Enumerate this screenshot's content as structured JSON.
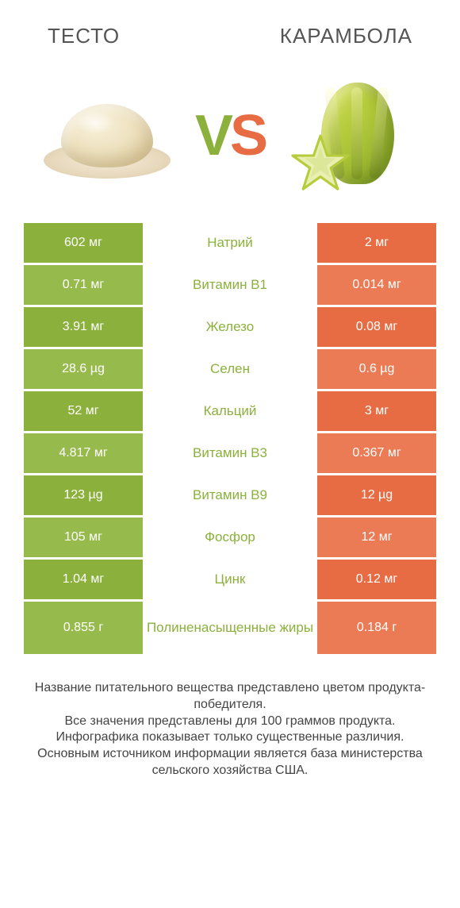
{
  "header": {
    "left_title": "ТЕСТО",
    "right_title": "КАРАМБОЛА"
  },
  "vs": {
    "v": "V",
    "s": "S"
  },
  "colors": {
    "left": "#8bb13c",
    "right": "#e86c43",
    "row_alt_tint": 0.12,
    "text_dark": "#444444",
    "background": "#ffffff"
  },
  "table": {
    "type": "comparison-table",
    "columns": [
      "left_value",
      "nutrient",
      "right_value"
    ],
    "rows": [
      {
        "left": "602 мг",
        "mid": "Натрий",
        "right": "2 мг",
        "winner": "left"
      },
      {
        "left": "0.71 мг",
        "mid": "Витамин B1",
        "right": "0.014 мг",
        "winner": "left"
      },
      {
        "left": "3.91 мг",
        "mid": "Железо",
        "right": "0.08 мг",
        "winner": "left"
      },
      {
        "left": "28.6 µg",
        "mid": "Селен",
        "right": "0.6 µg",
        "winner": "left"
      },
      {
        "left": "52 мг",
        "mid": "Кальций",
        "right": "3 мг",
        "winner": "left"
      },
      {
        "left": "4.817 мг",
        "mid": "Витамин B3",
        "right": "0.367 мг",
        "winner": "left"
      },
      {
        "left": "123 µg",
        "mid": "Витамин B9",
        "right": "12 µg",
        "winner": "left"
      },
      {
        "left": "105 мг",
        "mid": "Фосфор",
        "right": "12 мг",
        "winner": "left"
      },
      {
        "left": "1.04 мг",
        "mid": "Цинк",
        "right": "0.12 мг",
        "winner": "left"
      },
      {
        "left": "0.855 г",
        "mid": "Полиненасыщенные жиры",
        "right": "0.184 г",
        "winner": "left"
      }
    ],
    "left_bg_colors": [
      "#8bb13c",
      "#97ba4d",
      "#8bb13c",
      "#97ba4d",
      "#8bb13c",
      "#97ba4d",
      "#8bb13c",
      "#97ba4d",
      "#8bb13c",
      "#97ba4d"
    ],
    "right_bg_colors": [
      "#e86c43",
      "#ea7b55",
      "#e86c43",
      "#ea7b55",
      "#e86c43",
      "#ea7b55",
      "#e86c43",
      "#ea7b55",
      "#e86c43",
      "#ea7b55"
    ],
    "cell_font_size": 16,
    "mid_font_size": 17
  },
  "footer": {
    "lines": [
      "Название питательного вещества представлено цветом продукта-победителя.",
      "Все значения представлены для 100 граммов продукта.",
      "Инфографика показывает только существенные различия.",
      "Основным источником информации является база министерства сельского хозяйства США."
    ]
  }
}
